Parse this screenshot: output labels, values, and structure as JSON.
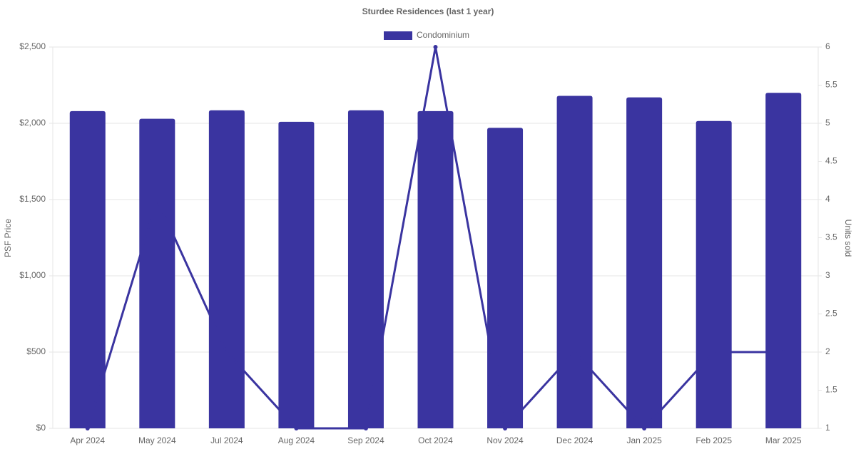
{
  "chart_data": {
    "type": "bar",
    "title": "Sturdee Residences (last 1 year)",
    "y_label": "PSF Price",
    "y2_label": "Units sold",
    "categories": [
      "Apr 2024",
      "May 2024",
      "Jul 2024",
      "Aug 2024",
      "Sep 2024",
      "Oct 2024",
      "Nov 2024",
      "Dec 2024",
      "Jan 2025",
      "Feb 2025",
      "Mar 2025"
    ],
    "series": [
      {
        "name": "Condominium",
        "type": "bar",
        "color": "#3a34a0",
        "values": [
          2080,
          2030,
          2085,
          2010,
          2085,
          2080,
          1970,
          2180,
          2170,
          2015,
          2200
        ]
      },
      {
        "type": "line",
        "axis": "y2",
        "color": "#3a34a0",
        "values": [
          1,
          4,
          2,
          1,
          1,
          6,
          1,
          2,
          1,
          2,
          2
        ]
      }
    ],
    "ylim": [
      0,
      2500
    ],
    "yticks": [
      {
        "value": 0,
        "label": "$0"
      },
      {
        "value": 500,
        "label": "$500"
      },
      {
        "value": 1000,
        "label": "$1,000"
      },
      {
        "value": 1500,
        "label": "$1,500"
      },
      {
        "value": 2000,
        "label": "$2,000"
      },
      {
        "value": 2500,
        "label": "$2,500"
      }
    ],
    "y2lim": [
      1,
      6
    ],
    "y2ticks": [
      1,
      1.5,
      2,
      2.5,
      3,
      3.5,
      4,
      4.5,
      5,
      5.5,
      6
    ],
    "grid": true,
    "legend": "top"
  }
}
